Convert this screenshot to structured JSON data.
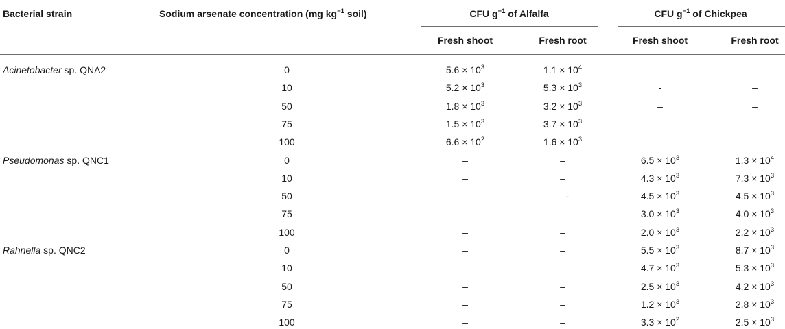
{
  "header": {
    "strain": "Bacterial strain",
    "conc_prefix": "Sodium arsenate concentration (mg kg",
    "conc_sup": "−1",
    "conc_suffix": " soil)",
    "group1_prefix": "CFU g",
    "group1_sup": "−1",
    "group1_suffix": " of Alfalfa",
    "group2_prefix": "CFU g",
    "group2_sup": "−1",
    "group2_suffix": " of Chickpea",
    "sub": [
      "Fresh shoot",
      "Fresh root",
      "Fresh shoot",
      "Fresh root"
    ]
  },
  "groups": [
    {
      "genus": "Acinetobacter",
      "rest": " sp. QNA2",
      "rows": [
        {
          "conc": "0",
          "cells": [
            [
              "5.6 × 10",
              "3"
            ],
            [
              "1.1 × 10",
              "4"
            ],
            [
              "–",
              ""
            ],
            [
              "–",
              ""
            ]
          ]
        },
        {
          "conc": "10",
          "cells": [
            [
              "5.2 × 10",
              "3"
            ],
            [
              "5.3 × 10",
              "3"
            ],
            [
              "-",
              ""
            ],
            [
              "–",
              ""
            ]
          ]
        },
        {
          "conc": "50",
          "cells": [
            [
              "1.8 × 10",
              "3"
            ],
            [
              "3.2 × 10",
              "3"
            ],
            [
              "–",
              ""
            ],
            [
              "–",
              ""
            ]
          ]
        },
        {
          "conc": "75",
          "cells": [
            [
              "1.5 × 10",
              "3"
            ],
            [
              "3.7 × 10",
              "3"
            ],
            [
              "–",
              ""
            ],
            [
              "–",
              ""
            ]
          ]
        },
        {
          "conc": "100",
          "cells": [
            [
              "6.6 × 10",
              "2"
            ],
            [
              "1.6 × 10",
              "3"
            ],
            [
              "–",
              ""
            ],
            [
              "–",
              ""
            ]
          ]
        }
      ]
    },
    {
      "genus": "Pseudomonas",
      "rest": " sp. QNC1",
      "rows": [
        {
          "conc": "0",
          "cells": [
            [
              "–",
              ""
            ],
            [
              "–",
              ""
            ],
            [
              "6.5 × 10",
              "3"
            ],
            [
              "1.3 × 10",
              "4"
            ]
          ]
        },
        {
          "conc": "10",
          "cells": [
            [
              "–",
              ""
            ],
            [
              "–",
              ""
            ],
            [
              "4.3 × 10",
              "3"
            ],
            [
              "7.3 × 10",
              "3"
            ]
          ]
        },
        {
          "conc": "50",
          "cells": [
            [
              "–",
              ""
            ],
            [
              "—-",
              ""
            ],
            [
              "4.5 × 10",
              "3"
            ],
            [
              "4.5 × 10",
              "3"
            ]
          ]
        },
        {
          "conc": "75",
          "cells": [
            [
              "–",
              ""
            ],
            [
              "–",
              ""
            ],
            [
              "3.0 × 10",
              "3"
            ],
            [
              "4.0 × 10",
              "3"
            ]
          ]
        },
        {
          "conc": "100",
          "cells": [
            [
              "–",
              ""
            ],
            [
              "–",
              ""
            ],
            [
              "2.0 × 10",
              "3"
            ],
            [
              "2.2 × 10",
              "3"
            ]
          ]
        }
      ]
    },
    {
      "genus": "Rahnella",
      "rest": " sp. QNC2",
      "rows": [
        {
          "conc": "0",
          "cells": [
            [
              "–",
              ""
            ],
            [
              "–",
              ""
            ],
            [
              "5.5 × 10",
              "3"
            ],
            [
              "8.7 × 10",
              "3"
            ]
          ]
        },
        {
          "conc": "10",
          "cells": [
            [
              "–",
              ""
            ],
            [
              "–",
              ""
            ],
            [
              "4.7 × 10",
              "3"
            ],
            [
              "5.3 × 10",
              "3"
            ]
          ]
        },
        {
          "conc": "50",
          "cells": [
            [
              "–",
              ""
            ],
            [
              "–",
              ""
            ],
            [
              "2.5 × 10",
              "3"
            ],
            [
              "4.2 × 10",
              "3"
            ]
          ]
        },
        {
          "conc": "75",
          "cells": [
            [
              "–",
              ""
            ],
            [
              "–",
              ""
            ],
            [
              "1.2 × 10",
              "3"
            ],
            [
              "2.8 × 10",
              "3"
            ]
          ]
        },
        {
          "conc": "100",
          "cells": [
            [
              "–",
              ""
            ],
            [
              "–",
              ""
            ],
            [
              "3.3 × 10",
              "2"
            ],
            [
              "2.5 × 10",
              "3"
            ]
          ]
        }
      ]
    }
  ]
}
